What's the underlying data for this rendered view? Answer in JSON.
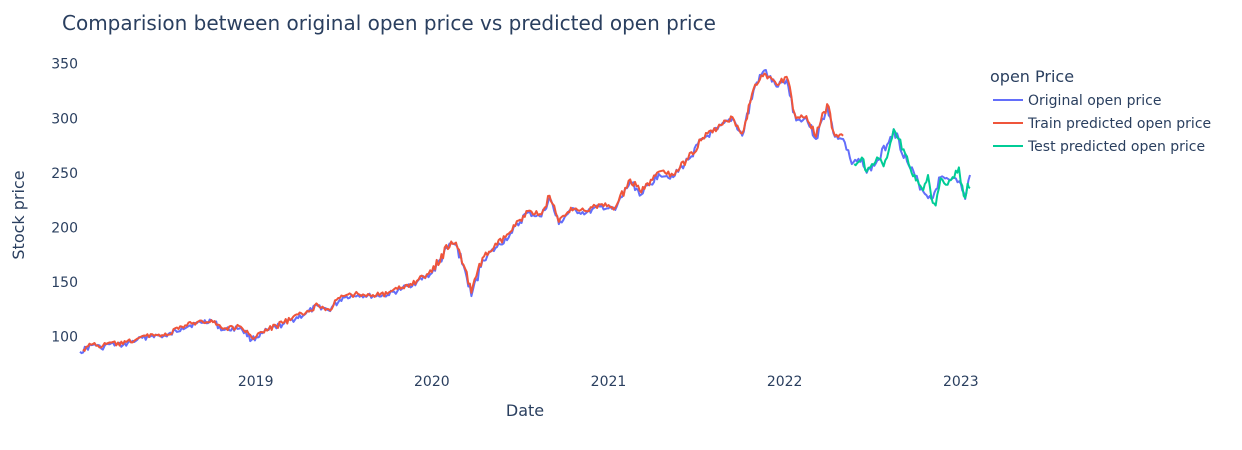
{
  "chart_data": {
    "type": "line",
    "title": "Comparision between original open price vs predicted open price",
    "xlabel": "Date",
    "ylabel": "Stock price",
    "xlim": [
      "2018-01-02",
      "2023-01-20"
    ],
    "ylim": [
      83,
      358
    ],
    "x_ticks": [
      {
        "date": "2019-01-01",
        "label": "2019"
      },
      {
        "date": "2020-01-01",
        "label": "2020"
      },
      {
        "date": "2021-01-01",
        "label": "2021"
      },
      {
        "date": "2022-01-01",
        "label": "2022"
      },
      {
        "date": "2023-01-01",
        "label": "2023"
      }
    ],
    "y_ticks": [
      100,
      150,
      200,
      250,
      300,
      350
    ],
    "grid": false,
    "legend": {
      "title": "open Price",
      "placement": "top-right, outside plot"
    },
    "series": [
      {
        "name": "Original open price",
        "color": "#636efa",
        "points": [
          [
            "2018-01-02",
            86
          ],
          [
            "2018-02-01",
            93
          ],
          [
            "2018-02-15",
            89
          ],
          [
            "2018-03-01",
            93
          ],
          [
            "2018-04-01",
            92
          ],
          [
            "2018-05-01",
            97
          ],
          [
            "2018-06-01",
            101
          ],
          [
            "2018-07-01",
            100
          ],
          [
            "2018-08-01",
            108
          ],
          [
            "2018-09-01",
            112
          ],
          [
            "2018-10-01",
            115
          ],
          [
            "2018-10-25",
            106
          ],
          [
            "2018-12-01",
            108
          ],
          [
            "2018-12-24",
            97
          ],
          [
            "2019-01-15",
            103
          ],
          [
            "2019-03-01",
            112
          ],
          [
            "2019-04-15",
            121
          ],
          [
            "2019-05-10",
            128
          ],
          [
            "2019-06-01",
            124
          ],
          [
            "2019-07-01",
            136
          ],
          [
            "2019-08-01",
            138
          ],
          [
            "2019-09-01",
            137
          ],
          [
            "2019-10-01",
            138
          ],
          [
            "2019-11-01",
            144
          ],
          [
            "2019-12-01",
            150
          ],
          [
            "2020-01-01",
            158
          ],
          [
            "2020-02-10",
            185
          ],
          [
            "2020-02-20",
            184
          ],
          [
            "2020-03-10",
            160
          ],
          [
            "2020-03-23",
            137
          ],
          [
            "2020-04-15",
            170
          ],
          [
            "2020-05-15",
            182
          ],
          [
            "2020-06-15",
            195
          ],
          [
            "2020-07-15",
            213
          ],
          [
            "2020-08-15",
            210
          ],
          [
            "2020-09-01",
            227
          ],
          [
            "2020-09-20",
            203
          ],
          [
            "2020-10-15",
            216
          ],
          [
            "2020-11-15",
            213
          ],
          [
            "2020-12-15",
            219
          ],
          [
            "2021-01-15",
            216
          ],
          [
            "2021-02-15",
            242
          ],
          [
            "2021-03-10",
            230
          ],
          [
            "2021-04-15",
            249
          ],
          [
            "2021-05-15",
            246
          ],
          [
            "2021-06-15",
            262
          ],
          [
            "2021-07-15",
            281
          ],
          [
            "2021-08-15",
            290
          ],
          [
            "2021-09-15",
            300
          ],
          [
            "2021-10-05",
            284
          ],
          [
            "2021-11-01",
            330
          ],
          [
            "2021-11-20",
            344
          ],
          [
            "2021-12-15",
            329
          ],
          [
            "2022-01-05",
            335
          ],
          [
            "2022-01-25",
            298
          ],
          [
            "2022-02-15",
            300
          ],
          [
            "2022-03-07",
            281
          ],
          [
            "2022-03-30",
            311
          ],
          [
            "2022-04-15",
            283
          ],
          [
            "2022-05-02",
            281
          ],
          [
            "2022-05-20",
            258
          ],
          [
            "2022-06-10",
            263
          ],
          [
            "2022-06-20",
            250
          ],
          [
            "2022-07-15",
            262
          ],
          [
            "2022-08-15",
            290
          ],
          [
            "2022-09-15",
            257
          ],
          [
            "2022-10-15",
            233
          ],
          [
            "2022-11-01",
            226
          ],
          [
            "2022-11-20",
            246
          ],
          [
            "2022-12-15",
            245
          ],
          [
            "2023-01-01",
            240
          ],
          [
            "2023-01-10",
            226
          ],
          [
            "2023-01-20",
            248
          ]
        ]
      },
      {
        "name": "Train predicted open price",
        "color": "#ef553b",
        "points": [
          [
            "2018-01-08",
            88
          ],
          [
            "2018-02-01",
            94
          ],
          [
            "2018-02-15",
            90
          ],
          [
            "2018-03-01",
            94
          ],
          [
            "2018-04-01",
            93
          ],
          [
            "2018-05-01",
            98
          ],
          [
            "2018-06-01",
            102
          ],
          [
            "2018-07-01",
            101
          ],
          [
            "2018-08-01",
            109
          ],
          [
            "2018-09-01",
            113
          ],
          [
            "2018-10-01",
            115
          ],
          [
            "2018-10-25",
            107
          ],
          [
            "2018-12-01",
            109
          ],
          [
            "2018-12-24",
            99
          ],
          [
            "2019-01-15",
            104
          ],
          [
            "2019-03-01",
            113
          ],
          [
            "2019-04-15",
            122
          ],
          [
            "2019-05-10",
            129
          ],
          [
            "2019-06-01",
            125
          ],
          [
            "2019-07-01",
            137
          ],
          [
            "2019-08-01",
            139
          ],
          [
            "2019-09-01",
            138
          ],
          [
            "2019-10-01",
            139
          ],
          [
            "2019-11-01",
            145
          ],
          [
            "2019-12-01",
            151
          ],
          [
            "2020-01-01",
            159
          ],
          [
            "2020-02-10",
            187
          ],
          [
            "2020-02-20",
            186
          ],
          [
            "2020-03-10",
            162
          ],
          [
            "2020-03-23",
            140
          ],
          [
            "2020-04-15",
            172
          ],
          [
            "2020-05-15",
            184
          ],
          [
            "2020-06-15",
            197
          ],
          [
            "2020-07-15",
            215
          ],
          [
            "2020-08-15",
            212
          ],
          [
            "2020-09-01",
            229
          ],
          [
            "2020-09-20",
            205
          ],
          [
            "2020-10-15",
            218
          ],
          [
            "2020-11-15",
            215
          ],
          [
            "2020-12-15",
            221
          ],
          [
            "2021-01-15",
            218
          ],
          [
            "2021-02-15",
            244
          ],
          [
            "2021-03-10",
            232
          ],
          [
            "2021-04-15",
            251
          ],
          [
            "2021-05-15",
            248
          ],
          [
            "2021-06-15",
            263
          ],
          [
            "2021-07-15",
            282
          ],
          [
            "2021-08-15",
            291
          ],
          [
            "2021-09-15",
            301
          ],
          [
            "2021-10-05",
            286
          ],
          [
            "2021-11-01",
            331
          ],
          [
            "2021-11-20",
            341
          ],
          [
            "2021-12-15",
            331
          ],
          [
            "2022-01-05",
            338
          ],
          [
            "2022-01-25",
            300
          ],
          [
            "2022-02-15",
            302
          ],
          [
            "2022-03-07",
            283
          ],
          [
            "2022-03-30",
            313
          ],
          [
            "2022-04-15",
            284
          ],
          [
            "2022-05-02",
            284
          ]
        ]
      },
      {
        "name": "Test predicted open price",
        "color": "#00cc96",
        "points": [
          [
            "2022-05-25",
            258
          ],
          [
            "2022-06-10",
            264
          ],
          [
            "2022-06-20",
            251
          ],
          [
            "2022-07-01",
            258
          ],
          [
            "2022-07-15",
            263
          ],
          [
            "2022-07-25",
            256
          ],
          [
            "2022-08-15",
            290
          ],
          [
            "2022-08-25",
            281
          ],
          [
            "2022-09-15",
            258
          ],
          [
            "2022-09-30",
            243
          ],
          [
            "2022-10-15",
            234
          ],
          [
            "2022-10-25",
            248
          ],
          [
            "2022-11-01",
            227
          ],
          [
            "2022-11-10",
            220
          ],
          [
            "2022-11-20",
            245
          ],
          [
            "2022-12-01",
            239
          ],
          [
            "2022-12-15",
            246
          ],
          [
            "2022-12-28",
            255
          ],
          [
            "2023-01-01",
            241
          ],
          [
            "2023-01-10",
            227
          ],
          [
            "2023-01-15",
            240
          ],
          [
            "2023-01-20",
            236
          ]
        ]
      }
    ]
  }
}
